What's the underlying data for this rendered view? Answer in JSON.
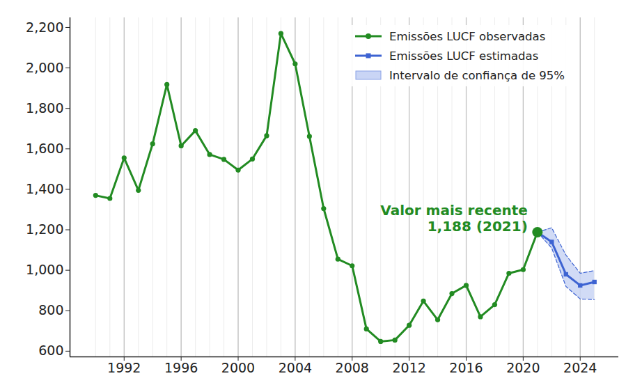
{
  "chart_data": {
    "type": "line",
    "series": [
      {
        "name": "Emissões LUCF observadas",
        "color": "#228b22",
        "marker": "circle",
        "line_style": "solid",
        "x": [
          1990,
          1991,
          1992,
          1993,
          1994,
          1995,
          1996,
          1997,
          1998,
          1999,
          2000,
          2001,
          2002,
          2003,
          2004,
          2005,
          2006,
          2007,
          2008,
          2009,
          2010,
          2011,
          2012,
          2013,
          2014,
          2015,
          2016,
          2017,
          2018,
          2019,
          2020,
          2021
        ],
        "values": [
          1370,
          1355,
          1555,
          1395,
          1625,
          1918,
          1615,
          1690,
          1572,
          1548,
          1495,
          1550,
          1665,
          2170,
          2020,
          1662,
          1305,
          1055,
          1022,
          710,
          648,
          655,
          728,
          848,
          755,
          885,
          925,
          770,
          830,
          985,
          1003,
          1188
        ]
      },
      {
        "name": "Emissões LUCF estimadas",
        "color": "#3d63d2",
        "marker": "square",
        "line_style": "solid",
        "x": [
          2021,
          2022,
          2023,
          2024,
          2025
        ],
        "values": [
          1188,
          1140,
          980,
          925,
          942
        ]
      }
    ],
    "confidence_interval": {
      "name": "Intervalo de confiança de 95%",
      "color": "#c9d5f5",
      "line_style": "dashed",
      "x": [
        2021,
        2022,
        2023,
        2024,
        2025
      ],
      "lower": [
        1188,
        1110,
        920,
        858,
        855
      ],
      "upper": [
        1188,
        1210,
        1075,
        985,
        998
      ]
    },
    "annotation": {
      "lines": [
        "Valor mais recente",
        "1,188 (2021)"
      ],
      "x": 2021,
      "y": 1188,
      "color": "#228b22"
    },
    "xlim": [
      1988.2,
      2026.7
    ],
    "ylim": [
      572,
      2248
    ],
    "xticks": [
      1992,
      1996,
      2000,
      2004,
      2008,
      2012,
      2016,
      2020,
      2024
    ],
    "yticks": [
      600,
      800,
      {
        "value": 1000,
        "label": "1,000"
      },
      {
        "value": 1200,
        "label": "1,200"
      },
      {
        "value": 1400,
        "label": "1,400"
      },
      {
        "value": 1600,
        "label": "1,600"
      },
      {
        "value": 1800,
        "label": "1,800"
      },
      {
        "value": 2000,
        "label": "2,000"
      },
      {
        "value": 2200,
        "label": "2,200"
      }
    ],
    "grid": true,
    "legend": "top-right"
  }
}
